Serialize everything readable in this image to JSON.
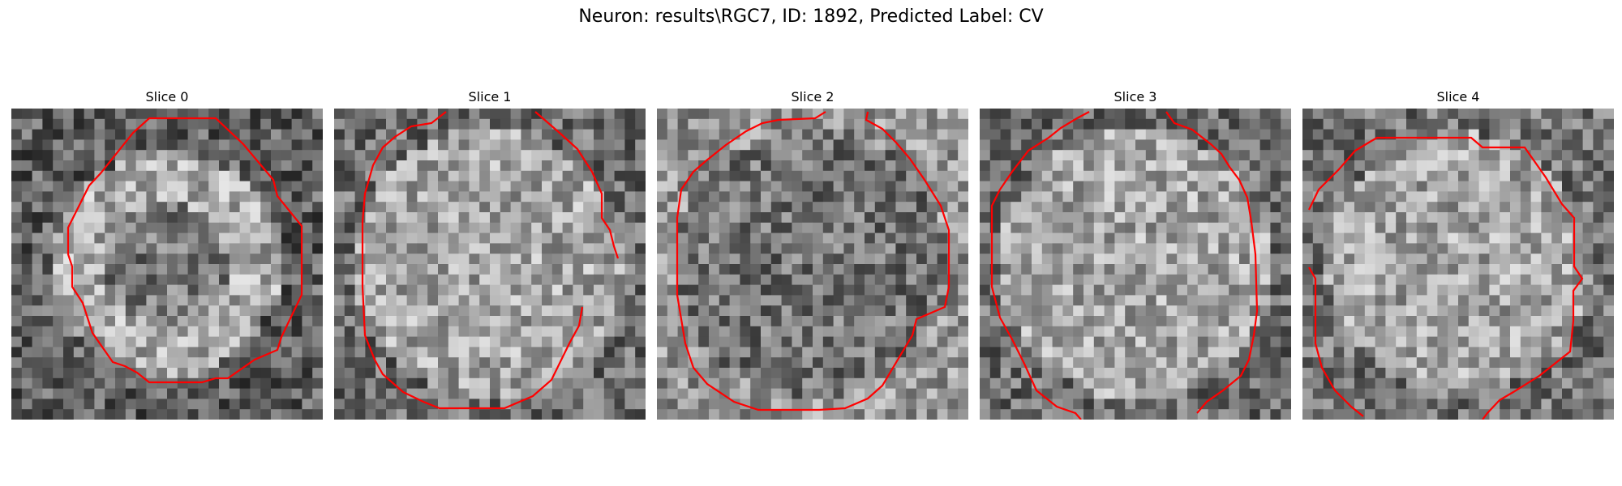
{
  "figure": {
    "suptitle": "Neuron: results\\RGC7, ID: 1892, Predicted Label: CV"
  },
  "panels": [
    {
      "title": "Slice 0",
      "seed": 11,
      "style": "ring0"
    },
    {
      "title": "Slice 1",
      "seed": 23,
      "style": "bright"
    },
    {
      "title": "Slice 2",
      "seed": 37,
      "style": "dark"
    },
    {
      "title": "Slice 3",
      "seed": 53,
      "style": "bright"
    },
    {
      "title": "Slice 4",
      "seed": 71,
      "style": "ring4"
    }
  ],
  "colors": {
    "contour": "#ff0000"
  },
  "grid_size": 30
}
